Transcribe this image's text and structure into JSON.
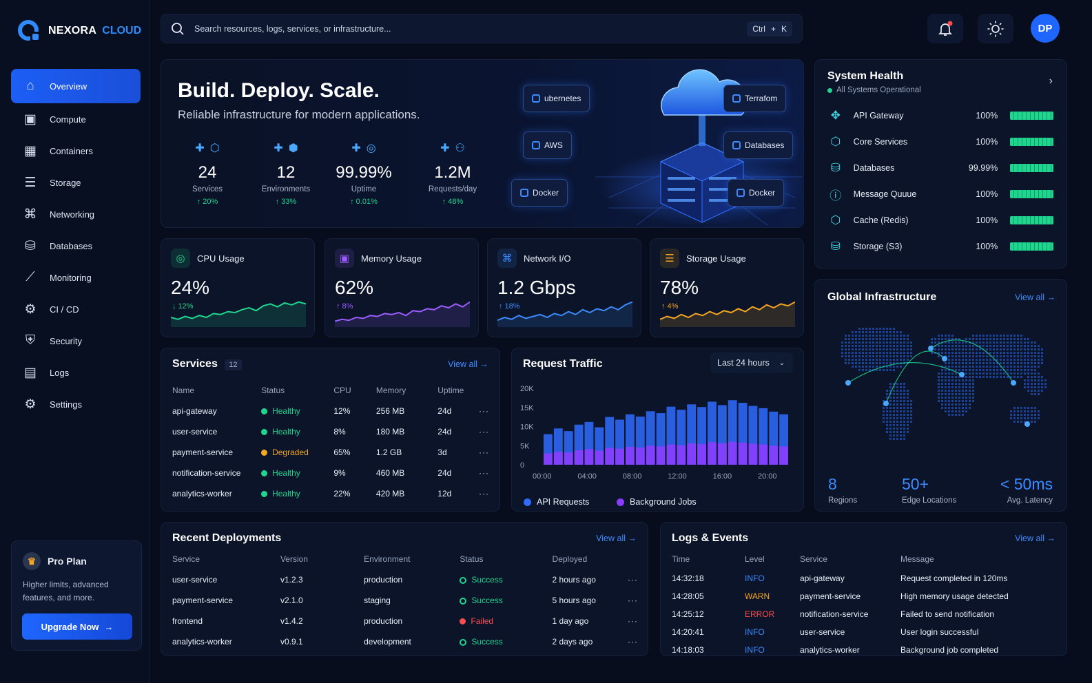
{
  "brand": {
    "name_part1": "NEXORA",
    "name_part2": "CLOUD"
  },
  "nav": [
    {
      "label": "Overview",
      "icon": "home-icon",
      "active": true
    },
    {
      "label": "Compute",
      "icon": "cpu-icon"
    },
    {
      "label": "Containers",
      "icon": "container-icon"
    },
    {
      "label": "Storage",
      "icon": "storage-icon"
    },
    {
      "label": "Networking",
      "icon": "network-icon"
    },
    {
      "label": "Databases",
      "icon": "database-icon"
    },
    {
      "label": "Monitoring",
      "icon": "chart-icon"
    },
    {
      "label": "CI / CD",
      "icon": "pipeline-icon"
    },
    {
      "label": "Security",
      "icon": "security-icon"
    },
    {
      "label": "Logs",
      "icon": "logs-icon"
    },
    {
      "label": "Settings",
      "icon": "gear-icon"
    }
  ],
  "pro": {
    "title": "Pro Plan",
    "desc": "Higher limits, advanced features, and more.",
    "button": "Upgrade Now"
  },
  "search": {
    "placeholder": "Search resources, logs, services, or infrastructure...",
    "shortcut_mod": "Ctrl",
    "shortcut_plus": "+",
    "shortcut_key": "K"
  },
  "user": {
    "initials": "DP"
  },
  "hero": {
    "title": "Build. Deploy. Scale.",
    "subtitle": "Reliable infrastructure for modern applications.",
    "stats": [
      {
        "value": "24",
        "label": "Services",
        "change": "↑ 20%"
      },
      {
        "value": "12",
        "label": "Environments",
        "change": "↑ 33%"
      },
      {
        "value": "99.99%",
        "label": "Uptime",
        "change": "↑ 0.01%"
      },
      {
        "value": "1.2M",
        "label": "Requests/day",
        "change": "↑ 48%"
      }
    ],
    "chips": [
      "ubernetes",
      "AWS",
      "Docker",
      "Terrafom",
      "Databases",
      "Docker"
    ]
  },
  "metrics": [
    {
      "title": "CPU Usage",
      "value": "24%",
      "change": "↓ 12%",
      "color": "#1fd690",
      "icon": "cpu-icon"
    },
    {
      "title": "Memory Usage",
      "value": "62%",
      "change": "↑ 8%",
      "color": "#9b5cff",
      "icon": "memory-icon"
    },
    {
      "title": "Network I/O",
      "value": "1.2 Gbps",
      "change": "↑ 18%",
      "color": "#3d8bff",
      "icon": "network-icon"
    },
    {
      "title": "Storage Usage",
      "value": "78%",
      "change": "↑ 4%",
      "color": "#f5a623",
      "icon": "storage-icon"
    }
  ],
  "services": {
    "title": "Services",
    "count": "12",
    "view_all": "View all",
    "headers": [
      "Name",
      "Status",
      "CPU",
      "Memory",
      "Uptime"
    ],
    "rows": [
      {
        "name": "api-gateway",
        "status": "Healthy",
        "cpu": "12%",
        "memory": "256 MB",
        "uptime": "24d"
      },
      {
        "name": "user-service",
        "status": "Healthy",
        "cpu": "8%",
        "memory": "180 MB",
        "uptime": "24d"
      },
      {
        "name": "payment-service",
        "status": "Degraded",
        "cpu": "65%",
        "memory": "1.2 GB",
        "uptime": "3d"
      },
      {
        "name": "notification-service",
        "status": "Healthy",
        "cpu": "9%",
        "memory": "460 MB",
        "uptime": "24d"
      },
      {
        "name": "analytics-worker",
        "status": "Healthy",
        "cpu": "22%",
        "memory": "420 MB",
        "uptime": "12d"
      }
    ]
  },
  "traffic": {
    "title": "Request Traffic",
    "range": "Last 24 hours",
    "legend": [
      "API Requests",
      "Background Jobs"
    ]
  },
  "chart_data": {
    "type": "bar",
    "title": "Request Traffic",
    "x_ticks": [
      "00:00",
      "04:00",
      "08:00",
      "12:00",
      "16:00",
      "20:00"
    ],
    "y_ticks": [
      "0",
      "5K",
      "10K",
      "15K",
      "20K"
    ],
    "ylim": [
      0,
      20000
    ],
    "series": [
      {
        "name": "API Requests",
        "color": "#2f6bff",
        "values": [
          8000,
          9500,
          8800,
          10500,
          11200,
          9800,
          12500,
          11800,
          13200,
          12600,
          14000,
          13500,
          15200,
          14400,
          15800,
          15100,
          16500,
          15600,
          16900,
          16200,
          15400,
          14800,
          13900,
          13200
        ]
      },
      {
        "name": "Background Jobs",
        "color": "#8a3dff",
        "values": [
          3000,
          3400,
          3200,
          3800,
          4100,
          3700,
          4400,
          4200,
          4700,
          4500,
          5000,
          4800,
          5300,
          5100,
          5600,
          5400,
          5900,
          5600,
          6000,
          5800,
          5500,
          5300,
          5000,
          4800
        ]
      }
    ]
  },
  "health": {
    "title": "System Health",
    "status": "All Systems Operational",
    "items": [
      {
        "name": "API Gateway",
        "pct": "100%",
        "icon": "gateway-icon"
      },
      {
        "name": "Core Services",
        "pct": "100%",
        "icon": "cube-icon"
      },
      {
        "name": "Databases",
        "pct": "99.99%",
        "icon": "database-icon"
      },
      {
        "name": "Message Quuue",
        "pct": "100%",
        "icon": "info-icon"
      },
      {
        "name": "Cache (Redis)",
        "pct": "100%",
        "icon": "cube-icon"
      },
      {
        "name": "Storage (S3)",
        "pct": "100%",
        "icon": "database-icon"
      }
    ]
  },
  "global": {
    "title": "Global Infrastructure",
    "view_all": "View all",
    "stats": [
      {
        "value": "8",
        "label": "Regions"
      },
      {
        "value": "50+",
        "label": "Edge Locations"
      },
      {
        "value": "< 50ms",
        "label": "Avg. Latency"
      }
    ]
  },
  "deployments": {
    "title": "Recent Deployments",
    "view_all": "View all",
    "headers": [
      "Service",
      "Version",
      "Environment",
      "Status",
      "Deployed"
    ],
    "rows": [
      {
        "service": "user-service",
        "version": "v1.2.3",
        "env": "production",
        "status": "Success",
        "deployed": "2 hours ago"
      },
      {
        "service": "payment-service",
        "version": "v2.1.0",
        "env": "staging",
        "status": "Success",
        "deployed": "5 hours ago"
      },
      {
        "service": "frontend",
        "version": "v1.4.2",
        "env": "production",
        "status": "Failed",
        "deployed": "1 day ago"
      },
      {
        "service": "analytics-worker",
        "version": "v0.9.1",
        "env": "development",
        "status": "Success",
        "deployed": "2 days ago"
      }
    ]
  },
  "logs": {
    "title": "Logs & Events",
    "view_all": "View all",
    "headers": [
      "Time",
      "Level",
      "Service",
      "Message"
    ],
    "rows": [
      {
        "time": "14:32:18",
        "level": "INFO",
        "service": "api-gateway",
        "message": "Request completed in 120ms"
      },
      {
        "time": "14:28:05",
        "level": "WARN",
        "service": "payment-service",
        "message": "High memory usage detected"
      },
      {
        "time": "14:25:12",
        "level": "ERROR",
        "service": "notification-service",
        "message": "Failed to send notification"
      },
      {
        "time": "14:20:41",
        "level": "INFO",
        "service": "user-service",
        "message": "User login successful"
      },
      {
        "time": "14:18:03",
        "level": "INFO",
        "service": "analytics-worker",
        "message": "Background job completed"
      }
    ]
  },
  "colors": {
    "accent": "#1f66ff",
    "healthy": "#1fd690",
    "degraded": "#f5a623",
    "failed": "#ff4d4f",
    "info": "#3d8bff",
    "warn": "#f5a623",
    "error": "#ff4d4f"
  }
}
